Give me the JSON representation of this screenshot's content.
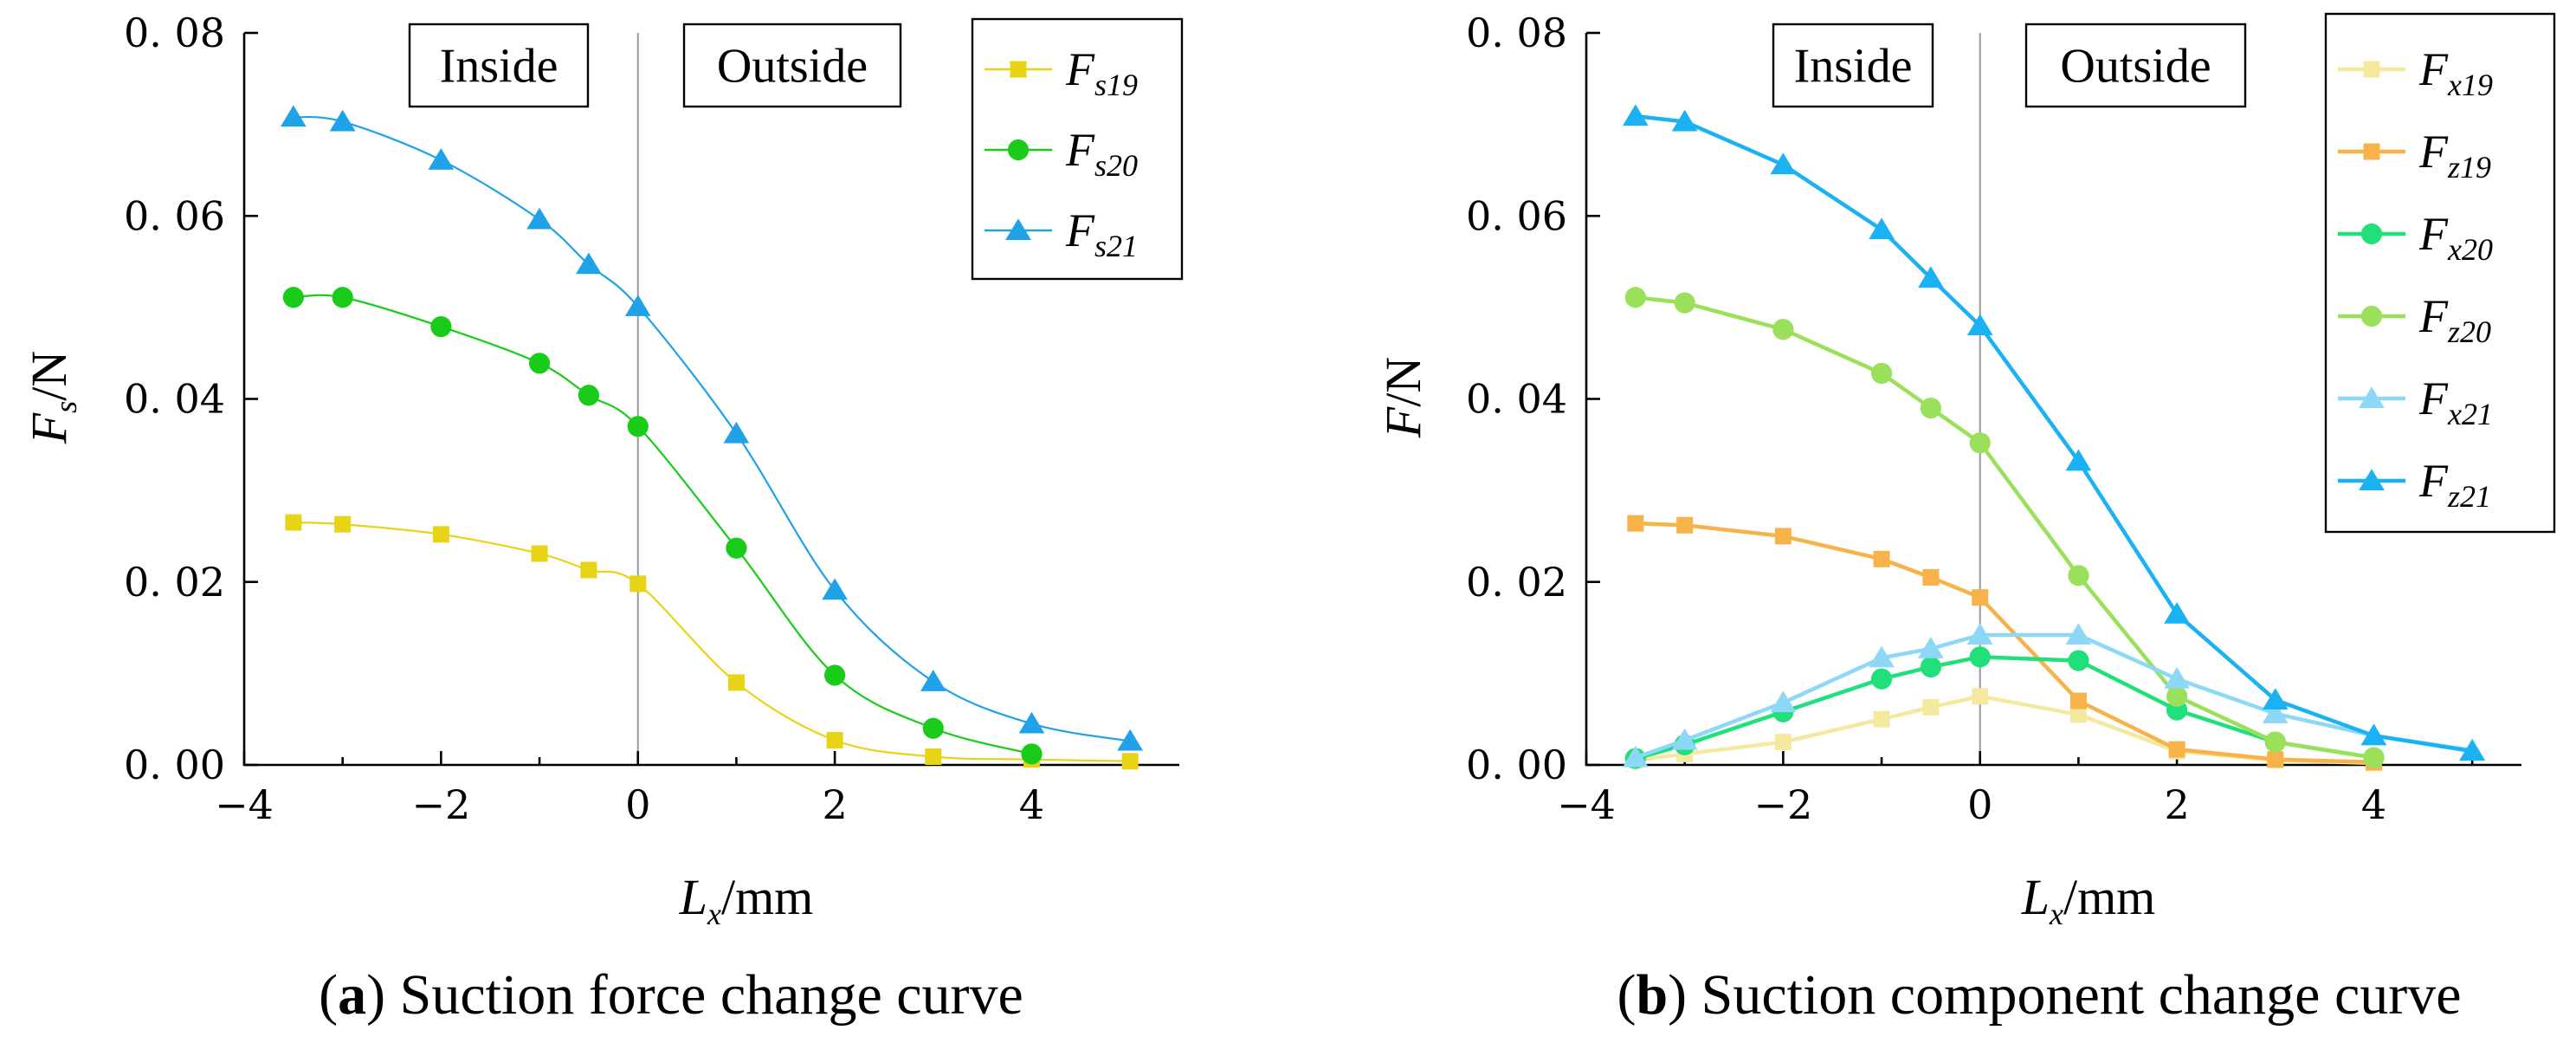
{
  "chart_data": [
    {
      "type": "line",
      "id": "a",
      "title": "Suction force change curve",
      "caption_letter": "(a)",
      "caption_text": " Suction force change curve",
      "ylabel_main": "F",
      "ylabel_sub": "s",
      "ylabel_unit": "/N",
      "xlabel_main": "L",
      "xlabel_sub": "x",
      "xlabel_unit": "/mm",
      "xlim": [
        -4,
        5.5
      ],
      "ylim": [
        0,
        0.08
      ],
      "xticks": [
        -4,
        -2,
        0,
        2,
        4
      ],
      "xtick_labels": [
        "−4",
        "−2",
        "0",
        "2",
        "4"
      ],
      "yticks": [
        0,
        0.02,
        0.04,
        0.06,
        0.08
      ],
      "ytick_labels": [
        "0. 00",
        "0. 02",
        "0. 04",
        "0. 06",
        "0. 08"
      ],
      "zero_tick_color": "#e8141b",
      "divider_x": 0,
      "regions": {
        "inside": "Inside",
        "outside": "Outside"
      },
      "legend_position": "top-right",
      "series": [
        {
          "name": "F",
          "sub": "s19",
          "marker": "square",
          "color": "#e8d417",
          "x": [
            -3.5,
            -3,
            -2,
            -1,
            -0.5,
            0,
            1,
            2,
            3,
            4,
            5
          ],
          "y": [
            0.0265,
            0.0263,
            0.0252,
            0.0231,
            0.0213,
            0.0198,
            0.009,
            0.0027,
            0.0009,
            0.0006,
            0.0004
          ]
        },
        {
          "name": "F",
          "sub": "s20",
          "marker": "circle",
          "color": "#19cc19",
          "x": [
            -3.5,
            -3,
            -2,
            -1,
            -0.5,
            0,
            1,
            2,
            3,
            4
          ],
          "y": [
            0.0511,
            0.0511,
            0.0479,
            0.0439,
            0.0404,
            0.037,
            0.0237,
            0.0098,
            0.004,
            0.0012
          ]
        },
        {
          "name": "F",
          "sub": "s21",
          "marker": "triangle",
          "color": "#1fa2e8",
          "x": [
            -3.5,
            -3,
            -2,
            -1,
            -0.5,
            0,
            1,
            2,
            3,
            4,
            5
          ],
          "y": [
            0.0708,
            0.0703,
            0.0661,
            0.0596,
            0.0547,
            0.0501,
            0.0362,
            0.0191,
            0.0091,
            0.0045,
            0.0026
          ]
        }
      ]
    },
    {
      "type": "line",
      "id": "b",
      "title": "Suction component change curve",
      "caption_letter": "(b)",
      "caption_text": " Suction component change curve",
      "ylabel_main": "F",
      "ylabel_sub": "",
      "ylabel_unit": "/N",
      "xlabel_main": "L",
      "xlabel_sub": "x",
      "xlabel_unit": "/mm",
      "xlim": [
        -4,
        5.5
      ],
      "ylim": [
        0,
        0.08
      ],
      "xticks": [
        -4,
        -2,
        0,
        2,
        4
      ],
      "xtick_labels": [
        "−4",
        "−2",
        "0",
        "2",
        "4"
      ],
      "yticks": [
        0,
        0.02,
        0.04,
        0.06,
        0.08
      ],
      "ytick_labels": [
        "0. 00",
        "0. 02",
        "0. 04",
        "0. 06",
        "0. 08"
      ],
      "zero_tick_color": "#e8141b",
      "divider_x": 0,
      "regions": {
        "inside": "Inside",
        "outside": "Outside"
      },
      "legend_position": "top-right",
      "series": [
        {
          "name": "F",
          "sub": "x19",
          "marker": "square",
          "color": "#f5e9a0",
          "x": [
            -3.5,
            -3,
            -2,
            -1,
            -0.5,
            0,
            1,
            2,
            3,
            4
          ],
          "y": [
            0.0005,
            0.0012,
            0.0025,
            0.005,
            0.0063,
            0.0075,
            0.0055,
            0.0015,
            0.0005,
            0.0002
          ]
        },
        {
          "name": "F",
          "sub": "z19",
          "marker": "square",
          "color": "#f7b24a",
          "x": [
            -3.5,
            -3,
            -2,
            -1,
            -0.5,
            0,
            1,
            2,
            3,
            4
          ],
          "y": [
            0.0264,
            0.0262,
            0.025,
            0.0225,
            0.0205,
            0.0183,
            0.007,
            0.0017,
            0.0006,
            0.0003
          ]
        },
        {
          "name": "F",
          "sub": "x20",
          "marker": "circle",
          "color": "#1fe07a",
          "x": [
            -3.5,
            -3,
            -2,
            -1,
            -0.5,
            0,
            1,
            2,
            3,
            4
          ],
          "y": [
            0.0007,
            0.0022,
            0.0058,
            0.0094,
            0.0107,
            0.0118,
            0.0114,
            0.006,
            0.0025,
            0.0008
          ]
        },
        {
          "name": "F",
          "sub": "z20",
          "marker": "circle",
          "color": "#9be05a",
          "x": [
            -3.5,
            -3,
            -2,
            -1,
            -0.5,
            0,
            1,
            2,
            3,
            4
          ],
          "y": [
            0.0511,
            0.0505,
            0.0476,
            0.0428,
            0.039,
            0.0352,
            0.0207,
            0.0075,
            0.0025,
            0.0008
          ]
        },
        {
          "name": "F",
          "sub": "x21",
          "marker": "triangle",
          "color": "#8dd8f7",
          "x": [
            -3.5,
            -3,
            -2,
            -1,
            -0.5,
            0,
            1,
            2,
            3,
            4,
            5
          ],
          "y": [
            0.0008,
            0.0027,
            0.0068,
            0.0117,
            0.0127,
            0.0142,
            0.0142,
            0.0094,
            0.0056,
            0.0032,
            0.0016
          ]
        },
        {
          "name": "F",
          "sub": "z21",
          "marker": "triangle",
          "color": "#1ab2f2",
          "x": [
            -3.5,
            -3,
            -2,
            -1,
            -0.5,
            0,
            1,
            2,
            3,
            4,
            5
          ],
          "y": [
            0.0709,
            0.0703,
            0.0656,
            0.0585,
            0.0532,
            0.048,
            0.0332,
            0.0165,
            0.0071,
            0.0032,
            0.0015
          ]
        }
      ]
    }
  ]
}
